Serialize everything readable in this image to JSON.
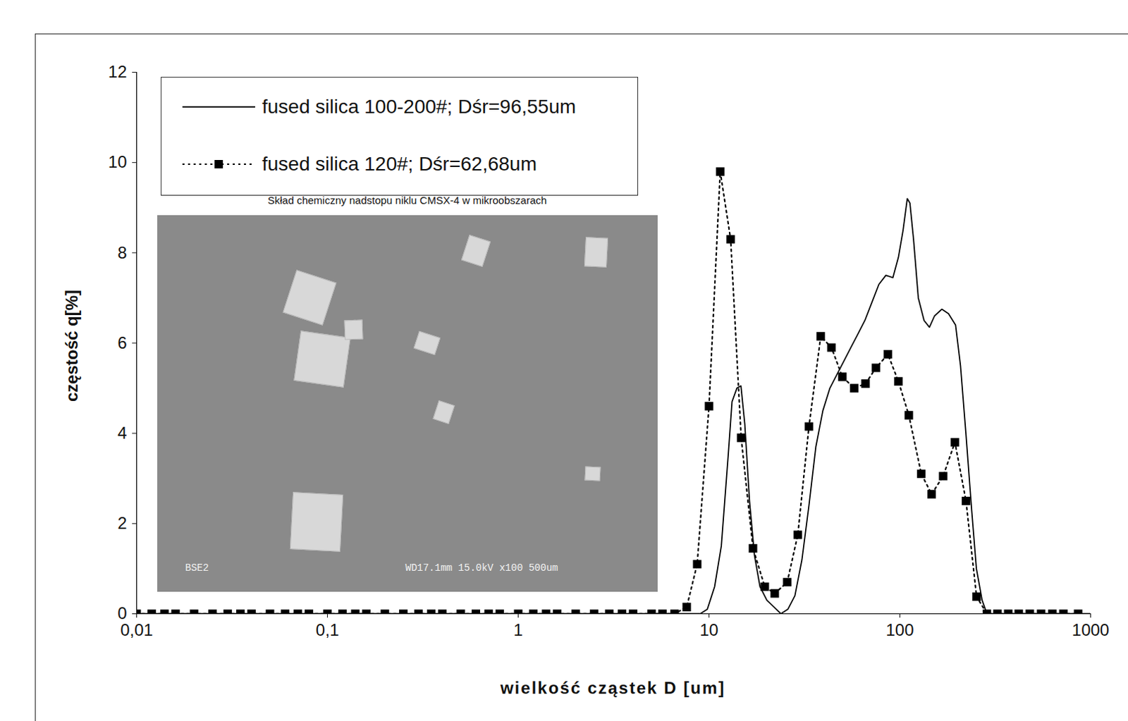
{
  "chart_data": {
    "type": "line",
    "x_label": "wielkość cząstek D [um]",
    "y_label": "częstość q[%]",
    "log": "x",
    "grid": false,
    "legend": "upper left",
    "xlim": [
      0.01,
      1000
    ],
    "xticks": [
      {
        "value": 0.01,
        "label": "0,01"
      },
      {
        "value": 0.1,
        "label": "0,1"
      },
      1,
      10,
      100,
      1000
    ],
    "ylim": [
      0,
      12
    ],
    "yticks": [
      0,
      2,
      4,
      6,
      8,
      10,
      12
    ],
    "annotations": [
      "Skład chemiczny nadstopu niklu CMSX-4 w mikroobszarach",
      "BSE2",
      "WD17.1mm 15.0kV x100 500um"
    ],
    "series": [
      {
        "name": "fused silica 100-200#; Dśr=96,55um",
        "color": "#000000",
        "line_style": "solid",
        "marker": "none",
        "x": [
          0.01,
          8,
          9,
          9.8,
          10.7,
          11.6,
          12.6,
          13.2,
          14.0,
          14.7,
          15.4,
          16.3,
          17.3,
          18.5,
          20.1,
          21.9,
          23.8,
          25.9,
          28.2,
          30.7,
          33.4,
          36.3,
          39.5,
          43,
          46.8,
          50.9,
          55.4,
          60.3,
          65.6,
          71.4,
          77.7,
          84.5,
          92,
          98.3,
          104,
          109.4,
          113,
          118,
          125,
          134,
          143,
          152,
          166,
          180,
          196,
          208,
          222,
          238,
          252,
          270,
          286,
          1000
        ],
        "values": [
          0,
          0,
          0,
          0.1,
          0.6,
          1.5,
          3.5,
          4.7,
          5.0,
          5.05,
          4.2,
          2.5,
          1.3,
          0.6,
          0.3,
          0.15,
          0,
          0.1,
          0.4,
          1.2,
          2.4,
          3.7,
          4.5,
          5.0,
          5.3,
          5.6,
          5.9,
          6.2,
          6.5,
          6.9,
          7.3,
          7.5,
          7.45,
          7.9,
          8.5,
          9.2,
          9.1,
          8.3,
          7.0,
          6.5,
          6.35,
          6.6,
          6.75,
          6.65,
          6.4,
          5.5,
          4.0,
          2.3,
          1.0,
          0.3,
          0,
          0
        ]
      },
      {
        "name": "fused silica 120#; Dśr=62,68um",
        "color": "#000000",
        "line_style": "dotted",
        "marker": "square",
        "x": [
          0.01,
          0.012,
          0.014,
          0.016,
          0.02,
          0.025,
          0.03,
          0.035,
          0.04,
          0.05,
          0.06,
          0.07,
          0.08,
          0.1,
          0.12,
          0.14,
          0.16,
          0.2,
          0.25,
          0.3,
          0.35,
          0.4,
          0.5,
          0.6,
          0.7,
          0.8,
          1,
          1.2,
          1.4,
          1.6,
          2,
          2.5,
          3,
          3.5,
          4,
          5,
          5.7,
          6.6,
          7.64,
          8.67,
          10,
          11.45,
          12.98,
          14.74,
          17.0,
          19.6,
          22.1,
          25.7,
          29.2,
          33.4,
          38.5,
          43.8,
          50.0,
          57.7,
          66.1,
          75.0,
          86.6,
          98.3,
          111.5,
          129.6,
          146.8,
          168.7,
          194.5,
          222.3,
          252.5,
          286,
          325,
          370,
          420,
          480,
          550,
          630,
          720,
          860
        ],
        "values": [
          0,
          0,
          0,
          0,
          0,
          0,
          0,
          0,
          0,
          0,
          0,
          0,
          0,
          0,
          0,
          0,
          0,
          0,
          0,
          0,
          0,
          0,
          0,
          0,
          0,
          0,
          0,
          0,
          0,
          0,
          0,
          0,
          0,
          0,
          0,
          0,
          0,
          0,
          0.15,
          1.1,
          4.6,
          9.8,
          8.3,
          3.9,
          1.45,
          0.6,
          0.45,
          0.7,
          1.75,
          4.15,
          6.15,
          5.9,
          5.25,
          5.0,
          5.1,
          5.45,
          5.75,
          5.15,
          4.4,
          3.1,
          2.65,
          3.05,
          3.8,
          2.5,
          0.38,
          0,
          0,
          0,
          0,
          0,
          0,
          0,
          0,
          0
        ]
      }
    ]
  }
}
